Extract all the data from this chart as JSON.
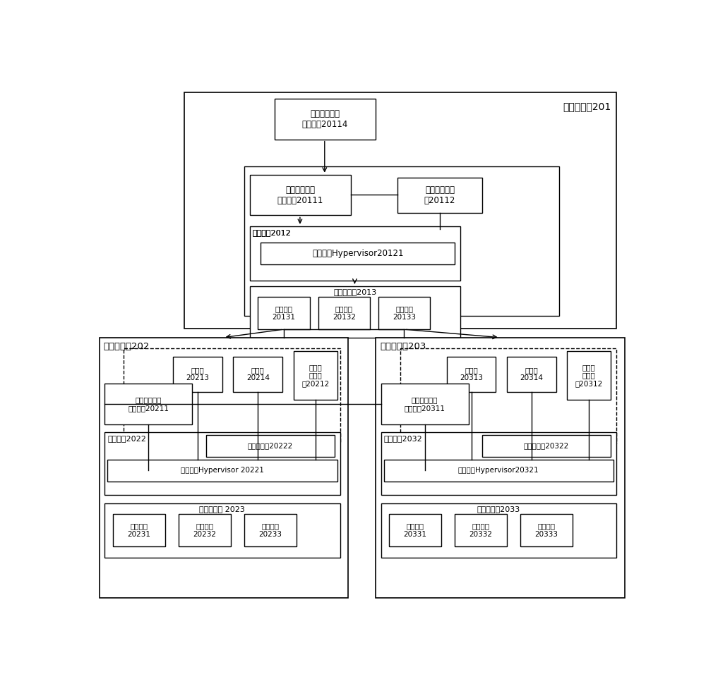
{
  "bg_color": "#ffffff",
  "text_color": "#000000",
  "figsize": [
    10.0,
    9.73
  ],
  "dpi": 100,
  "title201": "计算机设备201",
  "title202": "计算机设备202",
  "title203": "计算机设备203",
  "top_box_label": "虚拟负载均衡\n数据设备20114",
  "mgmt_label": "虚拟负载均衡\n管理单元20111",
  "vm_mgmt_label": "虚拟机管理单\n元20112",
  "os2012_label": "操作系统2012",
  "hyp2012_label": "虚拟化层Hypervisor20121",
  "hw2013_label": "硬件资源层2013",
  "hw20131_label": "计算硬件\n20131",
  "hw20132_label": "存储硬件\n20132",
  "hw20133_label": "网络硬件\n20133",
  "proxy20211_label": "虚拟负载均衡\n代理单元20211",
  "vm20213_label": "虚拟机\n20213",
  "vm20214_label": "虚拟机\n20214",
  "lb20212_label": "负载均\n衡虚拟\n机20212",
  "os2022_label": "操作系统2022",
  "vswitch20222_label": "虚拟交换机20222",
  "hyp20221_label": "虚拟化层Hypervisor 20221",
  "hw2023_label": "硬件资源层 2023",
  "hw20231_label": "计算硬件\n20231",
  "hw20232_label": "存储硬件\n20232",
  "hw20233_label": "网络硬件\n20233",
  "proxy20311_label": "虚拟负载均衡\n代理单元20311",
  "vm20313_label": "虚拟机\n20313",
  "vm20314_label": "虚拟机\n20314",
  "lb20312_label": "负载均\n衡虚拟\n机20312",
  "os2032_label": "操作系统2032",
  "vswitch20322_label": "虚拟交换机20322",
  "hyp20321_label": "虚拟化层Hypervisor20321",
  "hw2033_label": "硬件资源层2033",
  "hw20331_label": "计算硬件\n20331",
  "hw20332_label": "存储硬件\n20332",
  "hw20333_label": "网络硬件\n20333"
}
